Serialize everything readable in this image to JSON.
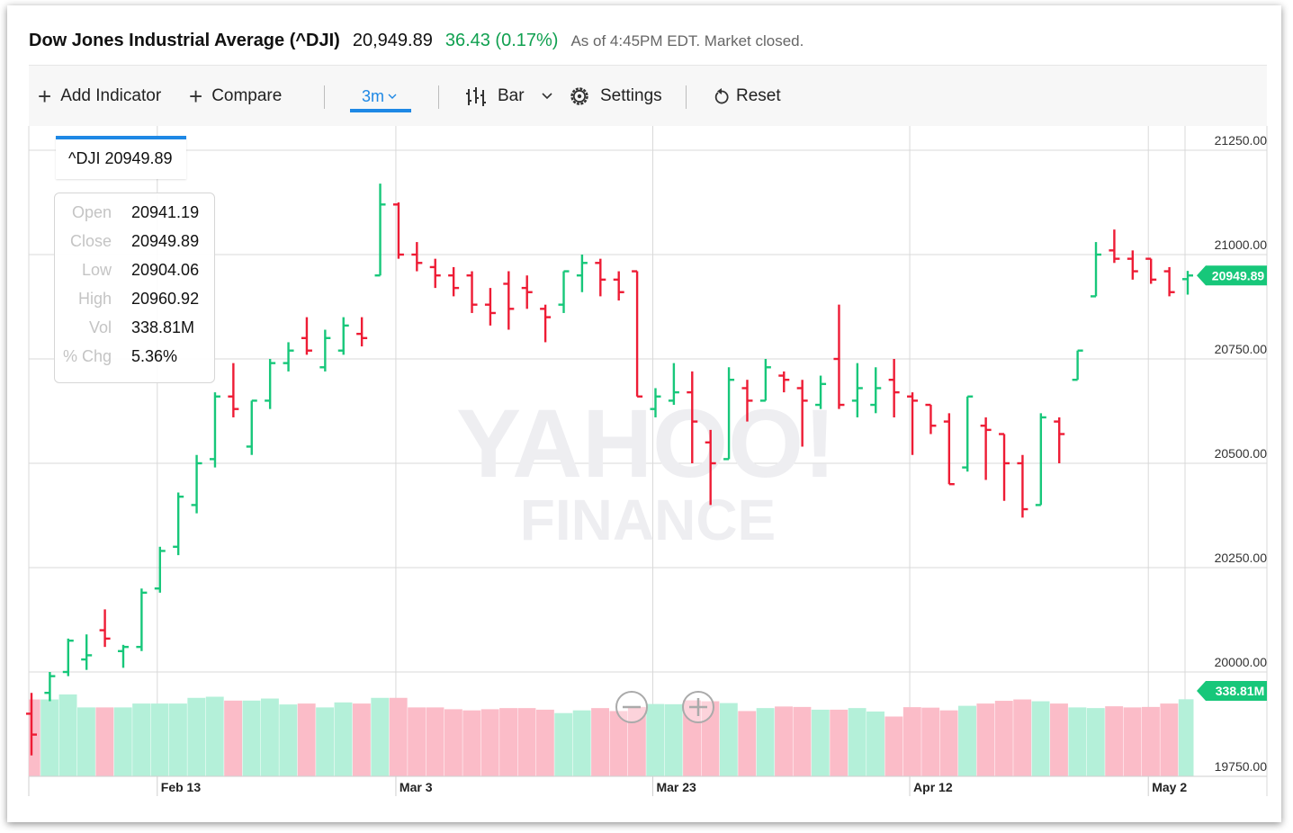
{
  "header": {
    "name": "Dow Jones Industrial Average (^DJI)",
    "price": "20,949.89",
    "change": "36.43 (0.17%)",
    "status": "As of 4:45PM EDT. Market closed."
  },
  "toolbar": {
    "add_indicator": "Add Indicator",
    "compare": "Compare",
    "range": "3m",
    "chart_type": "Bar",
    "settings": "Settings",
    "reset": "Reset"
  },
  "tooltip": {
    "symbol_price": "^DJI 20949.89",
    "rows": [
      {
        "label": "Open",
        "value": "20941.19"
      },
      {
        "label": "Close",
        "value": "20949.89"
      },
      {
        "label": "Low",
        "value": "20904.06"
      },
      {
        "label": "High",
        "value": "20960.92"
      },
      {
        "label": "Vol",
        "value": "338.81M"
      },
      {
        "label": "% Chg",
        "value": "5.36%"
      }
    ]
  },
  "watermark": {
    "line1": "YAHOO!",
    "line2": "FINANCE"
  },
  "colors": {
    "up": "#17c77a",
    "down": "#ee1c35",
    "up_volume": "#b4f0d9",
    "down_volume": "#fbbcc8",
    "accent": "#1e88e5"
  },
  "chart_data": {
    "type": "bar",
    "y_ticks": [
      "21250.00",
      "21000.00",
      "20750.00",
      "20500.00",
      "20250.00",
      "20000.00",
      "19750.00"
    ],
    "y_tick_values": [
      21250,
      21000,
      20750,
      20500,
      20250,
      20000,
      19750
    ],
    "ylim": [
      19750,
      21300
    ],
    "x_ticks": [
      {
        "label": "Feb 13",
        "index": 7
      },
      {
        "label": "Mar 3",
        "index": 20
      },
      {
        "label": "Mar 23",
        "index": 34
      },
      {
        "label": "Apr 12",
        "index": 48
      },
      {
        "label": "May 2",
        "index": 61
      }
    ],
    "grid": true,
    "last_price_label": "20949.89",
    "last_volume_label": "338.81M",
    "ohlc": [
      [
        19900,
        19950,
        19800,
        19850
      ],
      [
        19950,
        20000,
        19930,
        19990
      ],
      [
        20000,
        20080,
        19990,
        20075
      ],
      [
        20030,
        20090,
        20005,
        20040
      ],
      [
        20100,
        20150,
        20060,
        20080
      ],
      [
        20050,
        20065,
        20010,
        20060
      ],
      [
        20060,
        20200,
        20050,
        20190
      ],
      [
        20200,
        20300,
        20190,
        20290
      ],
      [
        20300,
        20430,
        20280,
        20420
      ],
      [
        20400,
        20520,
        20380,
        20500
      ],
      [
        20510,
        20670,
        20490,
        20660
      ],
      [
        20660,
        20740,
        20610,
        20630
      ],
      [
        20540,
        20650,
        20520,
        20650
      ],
      [
        20650,
        20750,
        20630,
        20740
      ],
      [
        20740,
        20790,
        20720,
        20770
      ],
      [
        20800,
        20850,
        20760,
        20770
      ],
      [
        20730,
        20820,
        20720,
        20800
      ],
      [
        20770,
        20850,
        20760,
        20830
      ],
      [
        20810,
        20850,
        20780,
        20800
      ],
      [
        20950,
        21170,
        20950,
        21120
      ],
      [
        21120,
        21125,
        20990,
        21000
      ],
      [
        21000,
        21030,
        20960,
        20980
      ],
      [
        20970,
        20990,
        20920,
        20950
      ],
      [
        20950,
        20970,
        20900,
        20920
      ],
      [
        20950,
        20960,
        20860,
        20880
      ],
      [
        20880,
        20920,
        20830,
        20860
      ],
      [
        20930,
        20960,
        20820,
        20870
      ],
      [
        20920,
        20950,
        20870,
        20910
      ],
      [
        20870,
        20880,
        20790,
        20850
      ],
      [
        20880,
        20960,
        20860,
        20960
      ],
      [
        20950,
        21000,
        20910,
        20980
      ],
      [
        20980,
        20990,
        20900,
        20940
      ],
      [
        20940,
        20960,
        20890,
        20910
      ],
      [
        20960,
        20960,
        20660,
        20660
      ],
      [
        20630,
        20680,
        20610,
        20660
      ],
      [
        20650,
        20740,
        20640,
        20670
      ],
      [
        20670,
        20720,
        20500,
        20600
      ],
      [
        20550,
        20580,
        20400,
        20500
      ],
      [
        20510,
        20730,
        20510,
        20700
      ],
      [
        20680,
        20700,
        20600,
        20650
      ],
      [
        20650,
        20750,
        20650,
        20730
      ],
      [
        20710,
        20720,
        20670,
        20700
      ],
      [
        20680,
        20700,
        20540,
        20650
      ],
      [
        20640,
        20710,
        20630,
        20690
      ],
      [
        20750,
        20880,
        20630,
        20640
      ],
      [
        20650,
        20740,
        20610,
        20680
      ],
      [
        20640,
        20730,
        20620,
        20680
      ],
      [
        20700,
        20750,
        20610,
        20670
      ],
      [
        20660,
        20670,
        20520,
        20650
      ],
      [
        20640,
        20640,
        20570,
        20590
      ],
      [
        20600,
        20620,
        20450,
        20450
      ],
      [
        20490,
        20660,
        20480,
        20660
      ],
      [
        20590,
        20610,
        20460,
        20580
      ],
      [
        20570,
        20570,
        20410,
        20500
      ],
      [
        20500,
        20520,
        20370,
        20390
      ],
      [
        20400,
        20620,
        20400,
        20610
      ],
      [
        20600,
        20610,
        20500,
        20570
      ],
      [
        20700,
        20770,
        20700,
        20770
      ],
      [
        20900,
        21030,
        20900,
        21000
      ],
      [
        21010,
        21060,
        20980,
        20990
      ],
      [
        20990,
        21010,
        20940,
        20960
      ],
      [
        20990,
        20990,
        20930,
        20940
      ],
      [
        20960,
        20970,
        20900,
        20910
      ],
      [
        20941.19,
        20960.92,
        20904.06,
        20949.89
      ]
    ],
    "volume": [
      338,
      338,
      360,
      303,
      303,
      303,
      320,
      320,
      320,
      345,
      350,
      333,
      333,
      342,
      316,
      320,
      303,
      325,
      320,
      345,
      345,
      303,
      303,
      295,
      290,
      295,
      300,
      300,
      293,
      278,
      290,
      300,
      287,
      305,
      318,
      317,
      334,
      330,
      322,
      287,
      300,
      307,
      305,
      293,
      293,
      300,
      285,
      263,
      304,
      302,
      290,
      310,
      320,
      332,
      338,
      330,
      320,
      303,
      300,
      308,
      303,
      305,
      320,
      338.81
    ],
    "volume_max": 700
  }
}
